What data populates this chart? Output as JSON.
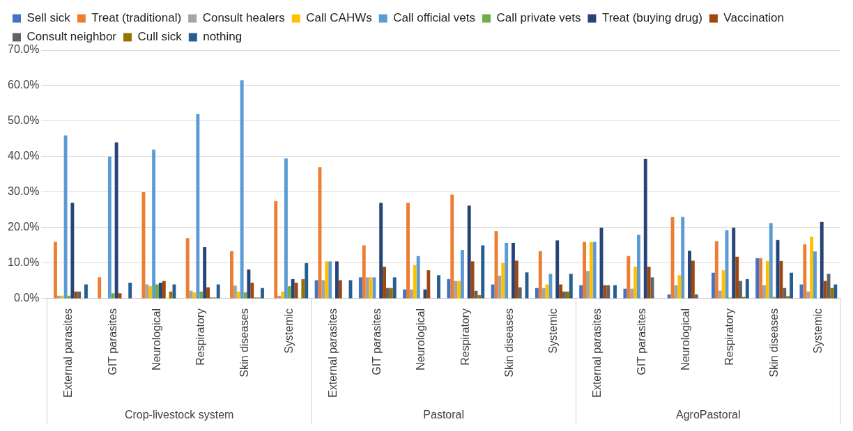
{
  "chart_data": {
    "type": "bar",
    "categories": [
      "External parasites",
      "GIT parasites",
      "Neurological",
      "Respiratory",
      "Skin diseases",
      "Systemic",
      "External parasites",
      "GIT parasites",
      "Neurological",
      "Respiratory",
      "Skin diseases",
      "Systemic",
      "External parasites",
      "GIT parasites",
      "Neurological",
      "Respiratory",
      "Skin diseases",
      "Systemic"
    ],
    "annotations": [
      "Crop-livestock system",
      "Pastoral",
      "AgroPastoral"
    ],
    "series": [
      {
        "name": "Sell sick",
        "color": "#4472c4",
        "values": [
          0,
          0,
          0,
          0,
          0,
          0,
          5.2,
          6,
          2.6,
          5.5,
          4,
          3,
          3.8,
          2.8,
          1.2,
          7.3,
          11.4,
          4
        ]
      },
      {
        "name": "Treat (traditional)",
        "color": "#ed7d31",
        "values": [
          16,
          6,
          30,
          17,
          13.4,
          27.5,
          37,
          15,
          27,
          29.3,
          19,
          13.4,
          16,
          12,
          23,
          16.2,
          11.4,
          15.3
        ]
      },
      {
        "name": "Consult healers",
        "color": "#a5a5a5",
        "values": [
          0.8,
          0,
          4,
          2.2,
          3.7,
          0.8,
          5.2,
          6,
          2.6,
          5,
          6.5,
          3,
          7.8,
          2.8,
          3.8,
          2.3,
          3.8,
          2
        ]
      },
      {
        "name": "Call CAHWs",
        "color": "#ffc000",
        "values": [
          0.8,
          0,
          3.5,
          1.8,
          2,
          2,
          10.5,
          6,
          9.5,
          5,
          10,
          4,
          16,
          9,
          6.6,
          8,
          10.6,
          17.5
        ]
      },
      {
        "name": "Call official vets",
        "color": "#5b9bd5",
        "values": [
          46,
          40,
          42,
          52,
          61.5,
          39.5,
          10.5,
          6,
          12,
          13.7,
          15.7,
          7,
          16,
          18,
          23,
          19.3,
          21.3,
          13.3
        ]
      },
      {
        "name": "Call private vets",
        "color": "#70ad47",
        "values": [
          0.8,
          1.5,
          4,
          2,
          1.8,
          3.5,
          0,
          0,
          0,
          0,
          0,
          0,
          0,
          0,
          0,
          0.3,
          0.5,
          0
        ]
      },
      {
        "name": "Treat (buying drug)",
        "color": "#264478",
        "values": [
          27,
          44,
          4.5,
          14.5,
          8.2,
          5.5,
          10.5,
          27,
          2.6,
          26.2,
          15.7,
          16.4,
          20,
          39.4,
          13.5,
          20,
          16.5,
          21.6
        ]
      },
      {
        "name": "Vaccination",
        "color": "#9e480e",
        "values": [
          2,
          1.5,
          5,
          3.2,
          4.5,
          4.5,
          5.2,
          9,
          8,
          10.5,
          10.7,
          4,
          3.8,
          9,
          10.7,
          11.8,
          10.6,
          5
        ]
      },
      {
        "name": "Consult neighbor",
        "color": "#636363",
        "values": [
          2,
          0,
          0,
          0.3,
          0.3,
          0,
          0,
          3,
          0,
          2.2,
          3.2,
          2,
          3.8,
          6,
          1.2,
          5,
          3,
          7
        ]
      },
      {
        "name": "Cull sick",
        "color": "#997300",
        "values": [
          0,
          0,
          2,
          0.3,
          0.3,
          5.5,
          0,
          3,
          0,
          1,
          0,
          2,
          0,
          0,
          0,
          0.5,
          0.7,
          3
        ]
      },
      {
        "name": "nothing",
        "color": "#255e91",
        "values": [
          4,
          4.5,
          4,
          4,
          3,
          10,
          5.2,
          6,
          6.6,
          15,
          7.4,
          7,
          3.8,
          0,
          0,
          5.5,
          7.3,
          4
        ]
      }
    ],
    "ylim": [
      0,
      70
    ],
    "yticks": [
      {
        "value": 0,
        "label": "0.0%"
      },
      {
        "value": 10,
        "label": "10.0%"
      },
      {
        "value": 20,
        "label": "20.0%"
      },
      {
        "value": 30,
        "label": "30.0%"
      },
      {
        "value": 40,
        "label": "40.0%"
      },
      {
        "value": 50,
        "label": "50.0%"
      },
      {
        "value": 60,
        "label": "60.0%"
      },
      {
        "value": 70,
        "label": "70.0%"
      }
    ],
    "grid": "y",
    "legend": "top"
  }
}
